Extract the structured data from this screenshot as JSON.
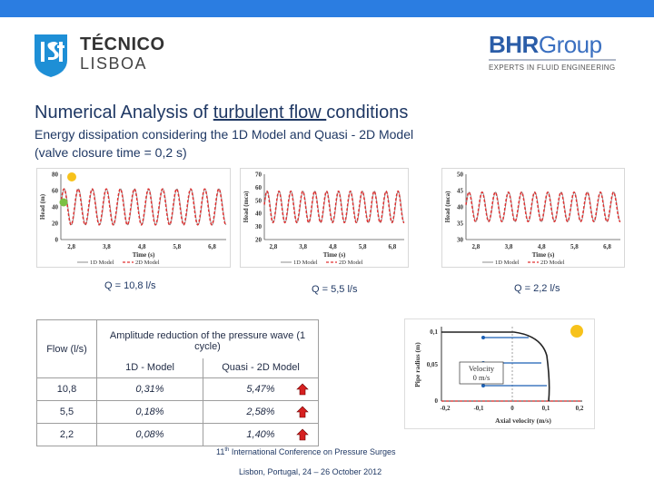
{
  "header": {
    "ist_line1": "TÉCNICO",
    "ist_line2": "LISBOA",
    "bhr_name": "BHR",
    "bhr_group": "Group",
    "bhr_tagline": "EXPERTS IN FLUID ENGINEERING"
  },
  "title": {
    "prefix": "Numerical Analysis of ",
    "underlined": "turbulent flow ",
    "suffix": "conditions"
  },
  "subtitle": {
    "line1": "Energy dissipation considering the 1D Model and Quasi - 2D Model",
    "line2": "(valve closure time = 0,2 s)"
  },
  "charts": {
    "q_labels": [
      "Q = 10,8 l/s",
      "Q = 5,5 l/s",
      "Q = 2,2 l/s"
    ],
    "legend_1d": "1D Model",
    "legend_2d": "2D Model",
    "xlabel": "Time (s)",
    "ylabel": "Head (m)",
    "ylabel_mca": "Head (mca)"
  },
  "chart_data": [
    {
      "type": "line",
      "ylabel": "Head (m)",
      "xlabel": "Time (s)",
      "xticks": [
        "2,8",
        "3,8",
        "4,8",
        "5,8",
        "6,8"
      ],
      "yticks": [
        "80",
        "60",
        "40",
        "20",
        "0"
      ],
      "ylim": [
        0,
        80
      ],
      "xlim": [
        2.5,
        7.2
      ],
      "series": [
        {
          "name": "1D Model",
          "color": "#8c8c8c",
          "style": "solid",
          "period": 0.4,
          "center": 40,
          "amplitude": 22
        },
        {
          "name": "2D Model",
          "color": "#e03030",
          "style": "dashed",
          "period": 0.4,
          "center": 40,
          "amplitude": 22
        }
      ]
    },
    {
      "type": "line",
      "ylabel": "Head (mca)",
      "xlabel": "Time (s)",
      "xticks": [
        "2,8",
        "3,8",
        "4,8",
        "5,8",
        "6,8"
      ],
      "yticks": [
        "70",
        "60",
        "50",
        "40",
        "30",
        "20"
      ],
      "ylim": [
        20,
        70
      ],
      "xlim": [
        2.5,
        7.2
      ],
      "series": [
        {
          "name": "1D Model",
          "color": "#8c8c8c",
          "style": "solid",
          "period": 0.4,
          "center": 45,
          "amplitude": 12
        },
        {
          "name": "2D Model",
          "color": "#e03030",
          "style": "dashed",
          "period": 0.4,
          "center": 45,
          "amplitude": 12
        }
      ]
    },
    {
      "type": "line",
      "ylabel": "Head (mca)",
      "xlabel": "Time (s)",
      "xticks": [
        "2,8",
        "3,8",
        "4,8",
        "5,8",
        "6,8"
      ],
      "yticks": [
        "50",
        "45",
        "40",
        "35",
        "30"
      ],
      "ylim": [
        30,
        50
      ],
      "xlim": [
        2.5,
        7.2
      ],
      "series": [
        {
          "name": "1D Model",
          "color": "#8c8c8c",
          "style": "solid",
          "period": 0.4,
          "center": 40,
          "amplitude": 4.5
        },
        {
          "name": "2D Model",
          "color": "#e03030",
          "style": "dashed",
          "period": 0.4,
          "center": 40,
          "amplitude": 4.5
        }
      ]
    }
  ],
  "table": {
    "flow_header": "Flow (l/s)",
    "amp_header": "Amplitude reduction of the pressure wave (1 cycle)",
    "col_1d": "1D - Model",
    "col_2d": "Quasi - 2D Model",
    "rows": [
      {
        "flow": "10,8",
        "v1d": "0,31%",
        "v2d": "5,47%"
      },
      {
        "flow": "5,5",
        "v1d": "0,18%",
        "v2d": "2,58%"
      },
      {
        "flow": "2,2",
        "v1d": "0,08%",
        "v2d": "1,40%"
      }
    ]
  },
  "velocity_chart": {
    "ylabel": "Pipe radius (m)",
    "xlabel": "Axial velocity (m/s)",
    "yticks": [
      "0,1",
      "0,05",
      "0"
    ],
    "xticks": [
      "-0,2",
      "-0,1",
      "0",
      "0,1",
      "0,2"
    ],
    "annotation_line1": "Velocity",
    "annotation_line2": "0 m/s"
  },
  "footer": {
    "conf_prefix": "11",
    "conf_sup": "th",
    "conf_text": " International Conference on Pressure Surges",
    "place_date": "Lisbon, Portugal, 24 – 26 October 2012"
  }
}
